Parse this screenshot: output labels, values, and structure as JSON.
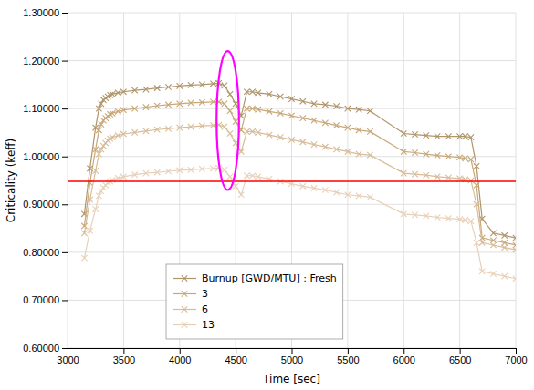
{
  "chart_data": {
    "type": "line",
    "title": "",
    "xlabel": "Time [sec]",
    "ylabel": "Criticality (keff)",
    "xlim": [
      3000,
      7000
    ],
    "ylim": [
      0.6,
      1.3
    ],
    "xticks": [
      3000,
      3500,
      4000,
      4500,
      5000,
      5500,
      6000,
      6500,
      7000
    ],
    "yticks": [
      {
        "value": 0.6,
        "label": "0.60000"
      },
      {
        "value": 0.7,
        "label": "0.70000"
      },
      {
        "value": 0.8,
        "label": "0.80000"
      },
      {
        "value": 0.9,
        "label": "0.90000"
      },
      {
        "value": 1.0,
        "label": "1.00000"
      },
      {
        "value": 1.1,
        "label": "1.10000"
      },
      {
        "value": 1.2,
        "label": "1.20000"
      },
      {
        "value": 1.3,
        "label": "1.30000"
      }
    ],
    "grid": true,
    "legend": "lower left",
    "marker": "x",
    "line_style": "solid",
    "hline": {
      "value": 0.948,
      "color": "red"
    },
    "ellipse": {
      "x": 4430,
      "y": 1.075,
      "width": 200,
      "height": 0.29,
      "color": "magenta"
    },
    "x": [
      3150,
      3200,
      3250,
      3280,
      3300,
      3320,
      3340,
      3360,
      3380,
      3400,
      3450,
      3500,
      3600,
      3700,
      3800,
      3900,
      4000,
      4100,
      4200,
      4300,
      4350,
      4400,
      4450,
      4500,
      4550,
      4600,
      4650,
      4700,
      4800,
      4900,
      5000,
      5100,
      5200,
      5300,
      5400,
      5500,
      5600,
      5700,
      6000,
      6100,
      6200,
      6300,
      6400,
      6500,
      6550,
      6600,
      6650,
      6700,
      6800,
      6900,
      7000
    ],
    "series": [
      {
        "name": "Burnup [GWD/MTU] : Fresh",
        "color": "#b0956a",
        "values": [
          0.88,
          0.975,
          1.06,
          1.1,
          1.11,
          1.118,
          1.122,
          1.125,
          1.128,
          1.13,
          1.133,
          1.135,
          1.138,
          1.14,
          1.143,
          1.145,
          1.147,
          1.149,
          1.15,
          1.152,
          1.153,
          1.148,
          1.13,
          1.11,
          1.085,
          1.135,
          1.135,
          1.133,
          1.13,
          1.125,
          1.12,
          1.115,
          1.11,
          1.108,
          1.105,
          1.1,
          1.098,
          1.095,
          1.048,
          1.046,
          1.044,
          1.042,
          1.042,
          1.042,
          1.042,
          1.04,
          0.98,
          0.87,
          0.84,
          0.835,
          0.83
        ]
      },
      {
        "name": "3",
        "color": "#c8a878",
        "values": [
          0.855,
          0.945,
          1.015,
          1.055,
          1.067,
          1.075,
          1.08,
          1.084,
          1.088,
          1.09,
          1.094,
          1.097,
          1.1,
          1.103,
          1.106,
          1.108,
          1.11,
          1.112,
          1.113,
          1.114,
          1.114,
          1.11,
          1.095,
          1.073,
          1.055,
          1.1,
          1.1,
          1.098,
          1.094,
          1.09,
          1.085,
          1.08,
          1.075,
          1.07,
          1.065,
          1.06,
          1.055,
          1.052,
          1.01,
          1.008,
          1.005,
          1.002,
          1.0,
          0.998,
          0.996,
          0.994,
          0.94,
          0.83,
          0.825,
          0.82,
          0.815
        ]
      },
      {
        "name": "6",
        "color": "#d8bc98",
        "values": [
          0.84,
          0.91,
          0.97,
          1.005,
          1.015,
          1.022,
          1.028,
          1.033,
          1.037,
          1.04,
          1.044,
          1.047,
          1.05,
          1.053,
          1.056,
          1.058,
          1.06,
          1.062,
          1.064,
          1.065,
          1.066,
          1.062,
          1.048,
          1.028,
          1.01,
          1.052,
          1.052,
          1.05,
          1.045,
          1.04,
          1.035,
          1.03,
          1.025,
          1.02,
          1.015,
          1.01,
          1.005,
          1.003,
          0.965,
          0.963,
          0.961,
          0.958,
          0.956,
          0.954,
          0.952,
          0.95,
          0.9,
          0.82,
          0.815,
          0.81,
          0.805
        ]
      },
      {
        "name": "13",
        "color": "#e8d0b8",
        "values": [
          0.788,
          0.845,
          0.89,
          0.918,
          0.928,
          0.935,
          0.94,
          0.945,
          0.948,
          0.951,
          0.955,
          0.958,
          0.962,
          0.965,
          0.967,
          0.969,
          0.971,
          0.972,
          0.974,
          0.975,
          0.976,
          0.972,
          0.958,
          0.938,
          0.92,
          0.96,
          0.96,
          0.958,
          0.953,
          0.948,
          0.943,
          0.938,
          0.934,
          0.93,
          0.925,
          0.92,
          0.918,
          0.915,
          0.88,
          0.878,
          0.876,
          0.873,
          0.871,
          0.869,
          0.867,
          0.865,
          0.82,
          0.76,
          0.755,
          0.75,
          0.745
        ]
      }
    ]
  }
}
